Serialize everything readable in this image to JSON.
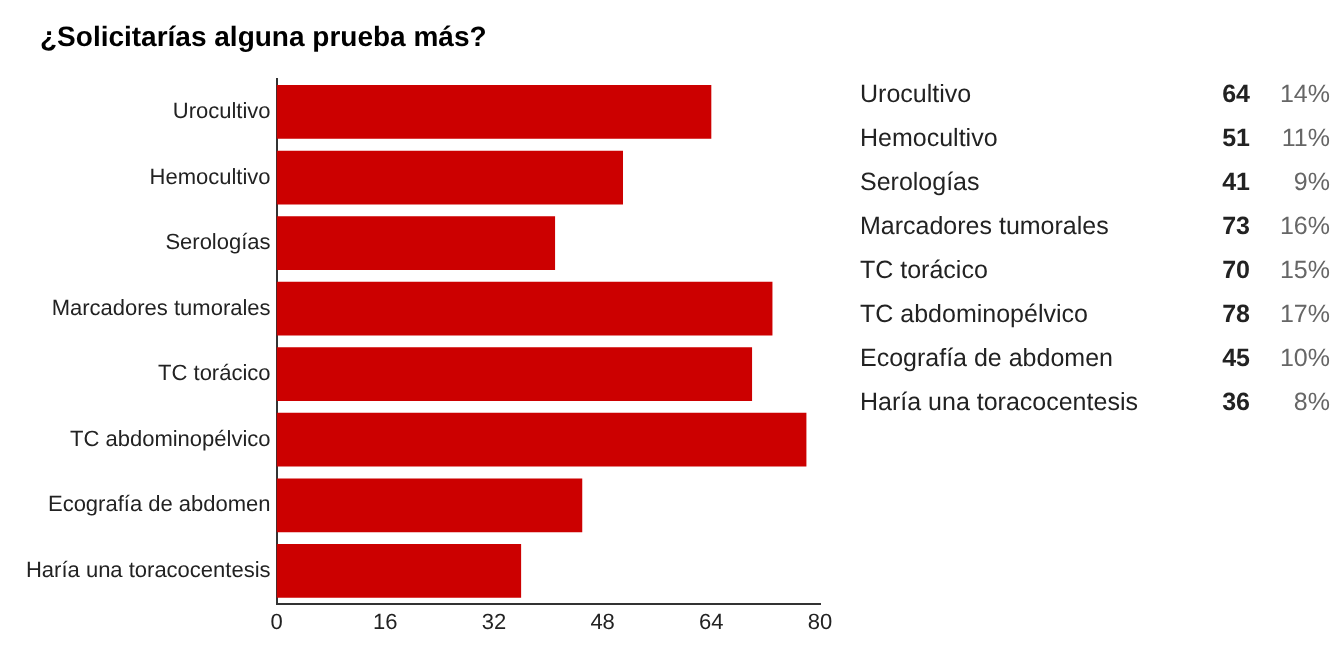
{
  "chart_data": {
    "type": "bar",
    "orientation": "horizontal",
    "title": "¿Solicitarías alguna prueba más?",
    "categories": [
      "Urocultivo",
      "Hemocultivo",
      "Serologías",
      "Marcadores tumorales",
      "TC torácico",
      "TC abdominopélvico",
      "Ecografía de abdomen",
      "Haría una toracocentesis"
    ],
    "values": [
      64,
      51,
      41,
      73,
      70,
      78,
      45,
      36
    ],
    "color": "#cc0000",
    "xlim": [
      0,
      80
    ],
    "xticks": [
      0,
      16,
      32,
      48,
      64,
      80
    ],
    "grid": false,
    "legend": false,
    "annotations": [
      "64",
      "14%",
      "51",
      "11%",
      "41",
      "9%",
      "73",
      "16%",
      "70",
      "15%",
      "78",
      "17%",
      "45",
      "10%",
      "36",
      "8%"
    ]
  }
}
